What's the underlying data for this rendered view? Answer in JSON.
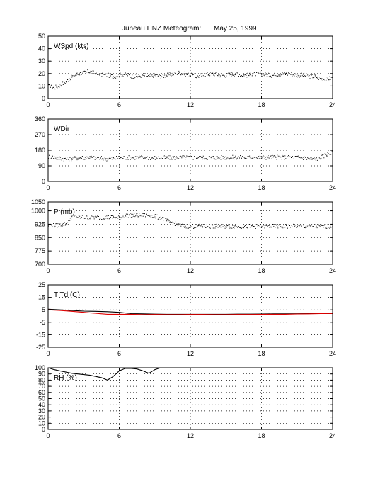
{
  "figure": {
    "title_left": "Juneau HNZ Meteogram:",
    "title_right": "May 25, 1999"
  },
  "colors": {
    "frame": "#000000",
    "grid": "#000000",
    "data": "#000000",
    "dewpoint": "#e00000"
  },
  "chart_data": [
    {
      "type": "scatter",
      "panel_label": "WSpd (kts)",
      "xlim": [
        0,
        24
      ],
      "xticks": [
        0,
        6,
        12,
        18,
        24
      ],
      "ylim": [
        0,
        50
      ],
      "yticks": [
        0,
        10,
        20,
        30,
        40,
        50
      ],
      "grid": true,
      "series": [
        {
          "style": "dots",
          "color": "#000000",
          "x": [
            0,
            0.5,
            1,
            1.5,
            2,
            2.5,
            3,
            3.5,
            4,
            4.5,
            5,
            5.5,
            6,
            6.5,
            7,
            7.5,
            8,
            8.5,
            9,
            9.5,
            10,
            10.5,
            11,
            11.5,
            12,
            12.5,
            13,
            13.5,
            14,
            14.5,
            15,
            15.5,
            16,
            16.5,
            17,
            17.5,
            18,
            18.5,
            19,
            19.5,
            20,
            20.5,
            21,
            21.5,
            22,
            22.5,
            23,
            23.5,
            24
          ],
          "y": [
            10,
            9,
            11,
            14,
            18,
            20,
            21,
            22,
            20,
            19,
            19,
            18,
            19,
            20,
            18,
            18,
            19,
            18,
            19,
            18,
            19,
            20,
            21,
            20,
            19,
            18,
            19,
            20,
            20,
            19,
            19,
            20,
            20,
            19,
            19,
            20,
            20,
            19,
            19,
            20,
            20,
            20,
            19,
            19,
            18,
            18,
            16,
            16,
            17
          ]
        }
      ]
    },
    {
      "type": "scatter",
      "panel_label": "WDir",
      "xlim": [
        0,
        24
      ],
      "xticks": [
        0,
        6,
        12,
        18,
        24
      ],
      "ylim": [
        0,
        360
      ],
      "yticks": [
        0,
        90,
        180,
        270,
        360
      ],
      "grid": true,
      "series": [
        {
          "style": "dots",
          "color": "#000000",
          "x": [
            0,
            0.5,
            1,
            1.5,
            2,
            2.5,
            3,
            3.5,
            4,
            4.5,
            5,
            5.5,
            6,
            7,
            8,
            9,
            10,
            11,
            12,
            13,
            14,
            15,
            16,
            17,
            18,
            19,
            20,
            21,
            21.5,
            22,
            22.5,
            23,
            23.5,
            24
          ],
          "y": [
            145,
            140,
            135,
            130,
            135,
            138,
            140,
            140,
            138,
            135,
            132,
            135,
            138,
            140,
            140,
            138,
            138,
            140,
            140,
            138,
            140,
            140,
            140,
            140,
            140,
            142,
            140,
            140,
            138,
            132,
            130,
            140,
            158,
            168
          ]
        }
      ]
    },
    {
      "type": "scatter",
      "panel_label": "P (mb)",
      "xlim": [
        0,
        24
      ],
      "xticks": [
        0,
        6,
        12,
        18,
        24
      ],
      "ylim": [
        700,
        1050
      ],
      "yticks": [
        700,
        775,
        850,
        925,
        1000,
        1050
      ],
      "grid": true,
      "series": [
        {
          "style": "dots",
          "color": "#000000",
          "x": [
            0,
            0.5,
            1,
            1.5,
            2,
            2.5,
            3,
            3.5,
            4,
            4.5,
            5,
            5.5,
            6,
            6.5,
            7,
            7.5,
            8,
            8.5,
            9,
            9.5,
            10,
            10.5,
            11,
            11.5,
            12,
            12.5,
            13,
            14,
            15,
            16,
            17,
            18,
            19,
            20,
            21,
            22,
            23,
            24
          ],
          "y": [
            920,
            920,
            921,
            930,
            970,
            968,
            965,
            965,
            965,
            965,
            965,
            965,
            962,
            975,
            977,
            977,
            977,
            976,
            970,
            962,
            945,
            935,
            922,
            915,
            915,
            915,
            915,
            915,
            915,
            915,
            915,
            915,
            915,
            915,
            915,
            915,
            915,
            915
          ]
        }
      ]
    },
    {
      "type": "line",
      "panel_label": "T Td (C)",
      "xlim": [
        0,
        24
      ],
      "xticks": [
        0,
        6,
        12,
        18,
        24
      ],
      "ylim": [
        -25,
        25
      ],
      "yticks": [
        -25,
        -15,
        -5,
        5,
        15,
        25
      ],
      "grid": true,
      "series": [
        {
          "style": "line",
          "color": "#000000",
          "x": [
            0,
            1,
            2,
            3,
            4,
            5,
            6,
            7,
            8,
            9,
            10,
            11,
            12,
            13,
            14,
            15,
            16,
            17,
            18,
            19,
            20,
            21,
            22,
            23,
            24
          ],
          "y": [
            5.5,
            5,
            4.5,
            4,
            3.8,
            3.5,
            3,
            2,
            1.8,
            1.6,
            1.5,
            1.5,
            1.5,
            1.5,
            1.5,
            1.5,
            1.6,
            1.6,
            1.7,
            1.8,
            1.8,
            1.9,
            2,
            2,
            2
          ]
        },
        {
          "style": "line",
          "color": "#e00000",
          "x": [
            0,
            1,
            2,
            3,
            4,
            5,
            6,
            7,
            8,
            9,
            10,
            11,
            12,
            13,
            14,
            15,
            16,
            17,
            18,
            19,
            20,
            21,
            22,
            23,
            24
          ],
          "y": [
            5,
            4.5,
            3.8,
            3,
            2.2,
            1.5,
            1.5,
            1.5,
            1.2,
            1.3,
            1.2,
            1.2,
            1.3,
            1.3,
            1.2,
            1.2,
            1.3,
            1.3,
            1.4,
            1.5,
            1.5,
            1.7,
            1.8,
            2,
            2.1
          ]
        }
      ]
    },
    {
      "type": "line",
      "panel_label": "RH (%)",
      "xlim": [
        0,
        24
      ],
      "xticks": [
        0,
        6,
        12,
        18,
        24
      ],
      "ylim": [
        0,
        100
      ],
      "yticks": [
        0,
        10,
        20,
        30,
        40,
        50,
        60,
        70,
        80,
        90,
        100
      ],
      "grid": true,
      "series": [
        {
          "style": "line",
          "color": "#000000",
          "x": [
            0,
            0.5,
            1,
            1.5,
            2,
            2.5,
            3,
            3.5,
            4,
            4.5,
            5,
            5.5,
            6,
            6.5,
            7,
            7.5,
            8,
            8.5,
            9,
            9.5
          ],
          "y": [
            100,
            97,
            95,
            93,
            91,
            90,
            89,
            88,
            86,
            84,
            80,
            86,
            95,
            99,
            99,
            98,
            95,
            91,
            97,
            100
          ]
        }
      ]
    }
  ]
}
